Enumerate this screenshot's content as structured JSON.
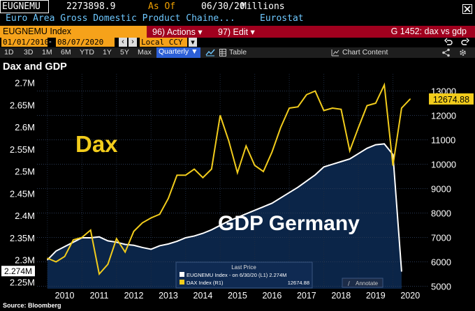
{
  "header": {
    "ticker": "EUGNEMU",
    "last_value": "2273898.9",
    "as_of_label": "As Of",
    "as_of_date": "06/30/20",
    "units": "Millions",
    "description": "Euro Area Gross Domestic Product Chaine...",
    "source": "Eurostat"
  },
  "toolbar": {
    "security": "EUGNEMU Index",
    "actions_label": "96) Actions ▾",
    "edit_label": "97) Edit ▾",
    "group_label": "G 1452: dax vs gdp",
    "start_date": "01/01/2010",
    "end_date": "08/07/2020",
    "currency": "Local CCY",
    "ranges": [
      "1D",
      "3D",
      "1M",
      "6M",
      "YTD",
      "1Y",
      "5Y",
      "Max"
    ],
    "period": "Quarterly ▼",
    "table_label": "Table",
    "chart_content_label": "Chart Content",
    "undo_icon": "undo-icon",
    "settings_icon": "gear-icon"
  },
  "chart_title": "Dax and GDP",
  "annotations": {
    "dax": "Dax",
    "gdp": "GDP  Germany"
  },
  "legend": {
    "title": "Last Price",
    "gdp_entry": "EUGNEMU Index - on 6/30/20 (L1) 2.274M",
    "dax_entry": "DAX Index (R1)",
    "dax_value": "12674.88",
    "annotate": "Annotate"
  },
  "footer": "Source: Bloomberg",
  "chart_data": {
    "type": "line",
    "x": [
      2010.0,
      2010.25,
      2010.5,
      2010.75,
      2011.0,
      2011.25,
      2011.5,
      2011.75,
      2012.0,
      2012.25,
      2012.5,
      2012.75,
      2013.0,
      2013.25,
      2013.5,
      2013.75,
      2014.0,
      2014.25,
      2014.5,
      2014.75,
      2015.0,
      2015.25,
      2015.5,
      2015.75,
      2016.0,
      2016.25,
      2016.5,
      2016.75,
      2017.0,
      2017.25,
      2017.5,
      2017.75,
      2018.0,
      2018.25,
      2018.5,
      2018.75,
      2019.0,
      2019.25,
      2019.5,
      2019.75,
      2020.0,
      2020.25,
      2020.5
    ],
    "series": [
      {
        "name": "EUGNEMU Index (L1)",
        "axis": "left",
        "color": "#ffffff",
        "values": [
          2.3,
          2.32,
          2.33,
          2.34,
          2.35,
          2.35,
          2.352,
          2.343,
          2.34,
          2.335,
          2.333,
          2.328,
          2.324,
          2.332,
          2.336,
          2.342,
          2.35,
          2.354,
          2.36,
          2.368,
          2.378,
          2.388,
          2.396,
          2.404,
          2.412,
          2.42,
          2.428,
          2.44,
          2.452,
          2.464,
          2.478,
          2.492,
          2.51,
          2.516,
          2.522,
          2.528,
          2.54,
          2.552,
          2.56,
          2.562,
          2.538,
          2.274,
          null
        ]
      },
      {
        "name": "DAX Index (R1)",
        "axis": "right",
        "color": "#f2cc1c",
        "values": [
          6150,
          6000,
          6220,
          6900,
          7000,
          7300,
          5500,
          5900,
          6950,
          6400,
          7250,
          7600,
          7800,
          7950,
          8600,
          9550,
          9550,
          9800,
          9450,
          9800,
          12000,
          10950,
          9650,
          10750,
          9950,
          9700,
          10500,
          11500,
          12300,
          12350,
          12850,
          13000,
          12200,
          12300,
          12250,
          10550,
          11500,
          12400,
          12500,
          13250,
          9950,
          12300,
          12674.88
        ]
      }
    ],
    "left_axis": {
      "range": [
        2.235,
        2.72
      ],
      "ticks": [
        "2.25M",
        "2.3M",
        "2.35M",
        "2.4M",
        "2.45M",
        "2.5M",
        "2.55M",
        "2.6M",
        "2.65M",
        "2.7M"
      ],
      "tick_values": [
        2.25,
        2.3,
        2.35,
        2.4,
        2.45,
        2.5,
        2.55,
        2.6,
        2.65,
        2.7
      ]
    },
    "right_axis": {
      "range": [
        4900,
        13700
      ],
      "ticks": [
        "5000",
        "6000",
        "7000",
        "8000",
        "9000",
        "10000",
        "11000",
        "12000",
        "13000"
      ],
      "tick_values": [
        5000,
        6000,
        7000,
        8000,
        9000,
        10000,
        11000,
        12000,
        13000
      ]
    },
    "x_ticks": [
      "2010",
      "2011",
      "2012",
      "2013",
      "2014",
      "2015",
      "2016",
      "2017",
      "2018",
      "2019",
      "2020"
    ],
    "x_range": [
      2009.7,
      2021.0
    ],
    "left_current_label": "2.274M",
    "right_current_label": "12674.88"
  },
  "colors": {
    "gdp_fill": "#0b2548",
    "dax_line": "#f2cc1c",
    "gdp_line": "#ffffff",
    "toolbar_red": "#a0001e",
    "field_orange": "#f6a21a"
  }
}
